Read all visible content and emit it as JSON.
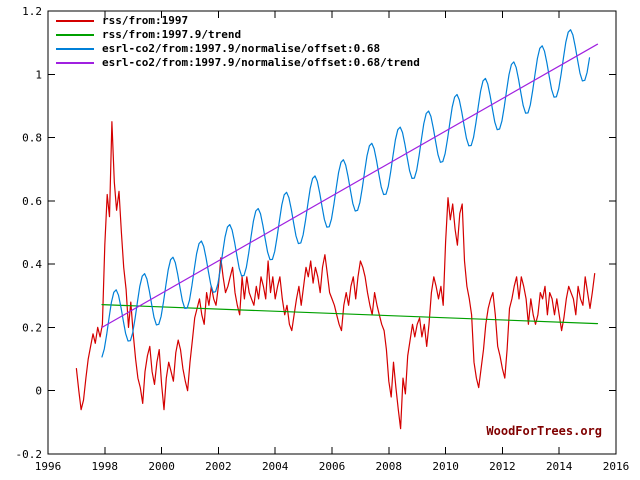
{
  "watermark_note": "plot generated chart, watermark bottom right",
  "chart_data": {
    "type": "line",
    "title": "",
    "xlabel": "",
    "ylabel": "",
    "xlim": [
      1996,
      2016
    ],
    "ylim": [
      -0.2,
      1.2
    ],
    "xticks": [
      1996,
      1998,
      2000,
      2002,
      2004,
      2006,
      2008,
      2010,
      2012,
      2014,
      2016
    ],
    "xtick_labels": [
      "1996",
      "1998",
      "2000",
      "2002",
      "2004",
      "2006",
      "2008",
      "2010",
      "2012",
      "2014",
      "2016"
    ],
    "yticks": [
      -0.2,
      0,
      0.2,
      0.4,
      0.6,
      0.8,
      1,
      1.2
    ],
    "ytick_labels": [
      "-0.2",
      "0",
      "0.2",
      "0.4",
      "0.6",
      "0.8",
      "1",
      "1.2"
    ],
    "grid": false,
    "legend_position": "top-left",
    "watermark": "WoodForTrees.org",
    "watermark_color": "#800000",
    "series": [
      {
        "name": "rss/from:1997",
        "color": "#d40000",
        "kind": "monthly",
        "x_start": 1997.0,
        "x_step": 0.0833333,
        "values": [
          0.07,
          0.0,
          -0.06,
          -0.03,
          0.04,
          0.1,
          0.14,
          0.18,
          0.15,
          0.2,
          0.17,
          0.21,
          0.46,
          0.62,
          0.55,
          0.85,
          0.66,
          0.57,
          0.63,
          0.5,
          0.39,
          0.32,
          0.2,
          0.28,
          0.18,
          0.1,
          0.04,
          0.01,
          -0.04,
          0.06,
          0.11,
          0.14,
          0.06,
          0.02,
          0.09,
          0.13,
          0.02,
          -0.06,
          0.04,
          0.09,
          0.06,
          0.03,
          0.12,
          0.16,
          0.13,
          0.07,
          0.03,
          0.0,
          0.09,
          0.16,
          0.23,
          0.26,
          0.29,
          0.24,
          0.21,
          0.31,
          0.27,
          0.33,
          0.29,
          0.27,
          0.33,
          0.42,
          0.36,
          0.31,
          0.33,
          0.36,
          0.39,
          0.31,
          0.27,
          0.24,
          0.36,
          0.29,
          0.36,
          0.31,
          0.29,
          0.27,
          0.33,
          0.29,
          0.36,
          0.33,
          0.29,
          0.41,
          0.31,
          0.36,
          0.29,
          0.33,
          0.36,
          0.29,
          0.24,
          0.27,
          0.21,
          0.19,
          0.24,
          0.29,
          0.33,
          0.27,
          0.33,
          0.39,
          0.36,
          0.41,
          0.34,
          0.39,
          0.36,
          0.31,
          0.39,
          0.43,
          0.37,
          0.31,
          0.29,
          0.27,
          0.24,
          0.21,
          0.19,
          0.27,
          0.31,
          0.27,
          0.33,
          0.36,
          0.29,
          0.36,
          0.41,
          0.39,
          0.36,
          0.31,
          0.27,
          0.24,
          0.31,
          0.27,
          0.24,
          0.21,
          0.19,
          0.13,
          0.03,
          -0.02,
          0.09,
          0.01,
          -0.06,
          -0.12,
          0.04,
          -0.01,
          0.11,
          0.16,
          0.21,
          0.17,
          0.21,
          0.23,
          0.17,
          0.21,
          0.14,
          0.21,
          0.31,
          0.36,
          0.33,
          0.29,
          0.33,
          0.27,
          0.47,
          0.61,
          0.54,
          0.59,
          0.51,
          0.46,
          0.56,
          0.59,
          0.41,
          0.33,
          0.29,
          0.24,
          0.09,
          0.04,
          0.01,
          0.07,
          0.13,
          0.21,
          0.26,
          0.29,
          0.31,
          0.24,
          0.14,
          0.11,
          0.07,
          0.04,
          0.13,
          0.26,
          0.29,
          0.33,
          0.36,
          0.29,
          0.36,
          0.33,
          0.29,
          0.21,
          0.29,
          0.24,
          0.21,
          0.24,
          0.31,
          0.29,
          0.33,
          0.24,
          0.31,
          0.29,
          0.24,
          0.29,
          0.24,
          0.19,
          0.23,
          0.29,
          0.33,
          0.31,
          0.29,
          0.24,
          0.33,
          0.29,
          0.27,
          0.36,
          0.31,
          0.26,
          0.31,
          0.37
        ]
      },
      {
        "name": "rss/from:1997.9/trend",
        "color": "#00a000",
        "kind": "segment",
        "points": [
          [
            1997.9,
            0.272
          ],
          [
            2015.35,
            0.212
          ]
        ]
      },
      {
        "name": "esrl-co2/from:1997.9/normalise/offset:0.68",
        "color": "#0080d8",
        "kind": "monthly",
        "x_start": 1997.9,
        "x_step": 0.0833333,
        "values": [
          0.107,
          0.132,
          0.178,
          0.231,
          0.279,
          0.311,
          0.319,
          0.302,
          0.265,
          0.221,
          0.181,
          0.157,
          0.158,
          0.183,
          0.229,
          0.282,
          0.33,
          0.362,
          0.37,
          0.353,
          0.316,
          0.272,
          0.232,
          0.208,
          0.21,
          0.235,
          0.281,
          0.334,
          0.382,
          0.414,
          0.422,
          0.405,
          0.368,
          0.324,
          0.284,
          0.26,
          0.261,
          0.286,
          0.332,
          0.385,
          0.433,
          0.465,
          0.473,
          0.456,
          0.419,
          0.375,
          0.335,
          0.311,
          0.313,
          0.338,
          0.384,
          0.437,
          0.485,
          0.517,
          0.525,
          0.508,
          0.471,
          0.427,
          0.387,
          0.363,
          0.364,
          0.389,
          0.435,
          0.488,
          0.536,
          0.568,
          0.576,
          0.559,
          0.522,
          0.478,
          0.438,
          0.414,
          0.415,
          0.44,
          0.486,
          0.539,
          0.587,
          0.619,
          0.627,
          0.61,
          0.573,
          0.529,
          0.489,
          0.465,
          0.467,
          0.492,
          0.538,
          0.591,
          0.639,
          0.671,
          0.679,
          0.662,
          0.625,
          0.581,
          0.541,
          0.517,
          0.518,
          0.543,
          0.589,
          0.642,
          0.69,
          0.722,
          0.73,
          0.713,
          0.676,
          0.632,
          0.592,
          0.568,
          0.57,
          0.595,
          0.641,
          0.694,
          0.742,
          0.774,
          0.782,
          0.765,
          0.728,
          0.684,
          0.644,
          0.62,
          0.621,
          0.646,
          0.692,
          0.745,
          0.793,
          0.825,
          0.833,
          0.816,
          0.779,
          0.735,
          0.695,
          0.671,
          0.672,
          0.697,
          0.743,
          0.796,
          0.844,
          0.876,
          0.884,
          0.867,
          0.83,
          0.786,
          0.746,
          0.722,
          0.724,
          0.749,
          0.795,
          0.848,
          0.896,
          0.928,
          0.936,
          0.919,
          0.882,
          0.838,
          0.798,
          0.774,
          0.775,
          0.8,
          0.846,
          0.899,
          0.947,
          0.979,
          0.987,
          0.97,
          0.933,
          0.889,
          0.849,
          0.825,
          0.827,
          0.852,
          0.898,
          0.951,
          0.999,
          1.031,
          1.039,
          1.022,
          0.985,
          0.941,
          0.901,
          0.877,
          0.878,
          0.903,
          0.949,
          1.002,
          1.05,
          1.082,
          1.09,
          1.073,
          1.036,
          0.992,
          0.952,
          0.928,
          0.929,
          0.954,
          1.0,
          1.053,
          1.101,
          1.133,
          1.141,
          1.124,
          1.087,
          1.043,
          1.003,
          0.979,
          0.981,
          1.006,
          1.052
        ]
      },
      {
        "name": "esrl-co2/from:1997.9/normalise/offset:0.68/trend",
        "color": "#a020e0",
        "kind": "segment",
        "points": [
          [
            1997.9,
            0.2
          ],
          [
            2015.35,
            1.095
          ]
        ]
      }
    ]
  }
}
